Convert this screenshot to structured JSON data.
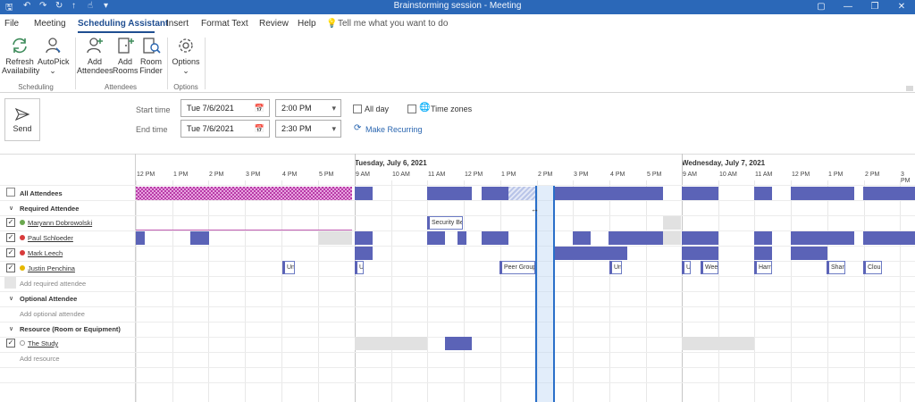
{
  "window": {
    "title": "Brainstorming session  -  Meeting",
    "controls": [
      "▢",
      "—",
      "❐",
      "✕"
    ]
  },
  "tabs": [
    {
      "label": "File"
    },
    {
      "label": "Meeting"
    },
    {
      "label": "Scheduling Assistant",
      "active": true
    },
    {
      "label": "Insert"
    },
    {
      "label": "Format Text"
    },
    {
      "label": "Review"
    },
    {
      "label": "Help"
    }
  ],
  "tell_me": "Tell me what you want to do",
  "ribbon": {
    "scheduling": {
      "label": "Scheduling",
      "refresh_line1": "Refresh",
      "refresh_line2": "Availability",
      "autopick": "AutoPick"
    },
    "attendees": {
      "label": "Attendees",
      "add_attendees_1": "Add",
      "add_attendees_2": "Attendees",
      "add_rooms_1": "Add",
      "add_rooms_2": "Rooms",
      "room_finder_1": "Room",
      "room_finder_2": "Finder"
    },
    "options": {
      "label": "Options",
      "options_btn": "Options"
    }
  },
  "form": {
    "send": "Send",
    "start_label": "Start time",
    "end_label": "End time",
    "start_date": "Tue 7/6/2021",
    "start_time": "2:00 PM",
    "end_date": "Tue 7/6/2021",
    "end_time": "2:30 PM",
    "all_day": "All day",
    "time_zones": "Time zones",
    "make_recurring": "Make Recurring"
  },
  "grid": {
    "days": [
      "Tuesday, July 6, 2021",
      "Wednesday, July 7, 2021"
    ],
    "hours": [
      "12 PM",
      "1 PM",
      "2 PM",
      "3 PM",
      "4 PM",
      "5 PM",
      "9 AM",
      "10 AM",
      "11 AM",
      "12 PM",
      "1 PM",
      "2 PM",
      "3 PM",
      "4 PM",
      "5 PM",
      "9 AM",
      "10 AM",
      "11 AM",
      "12 PM",
      "1 PM",
      "2 PM",
      "3 PM"
    ],
    "rows": {
      "all_attendees": "All Attendees",
      "required": "Required Attendee",
      "maryann": "Maryann Dobrowolski",
      "paul": "Paul Schloeder",
      "mark": "Mark Leech",
      "justin": "Justin Penchina",
      "add_required": "Add required attendee",
      "optional": "Optional Attendee",
      "add_optional": "Add optional attendee",
      "resource": "Resource (Room or Equipment)",
      "the_study": "The Study",
      "add_resource": "Add resource"
    },
    "tags": {
      "security": "Security Be",
      "justin": [
        "Un",
        "U",
        "Peer Group",
        "Un",
        "U",
        "Weel",
        "Harn",
        "Shar",
        "Clou"
      ]
    },
    "status_colors": {
      "busy": "#5b63b7",
      "available": "#6aa84f",
      "away": "#d83b3b",
      "tentative": "#e6b800"
    }
  }
}
